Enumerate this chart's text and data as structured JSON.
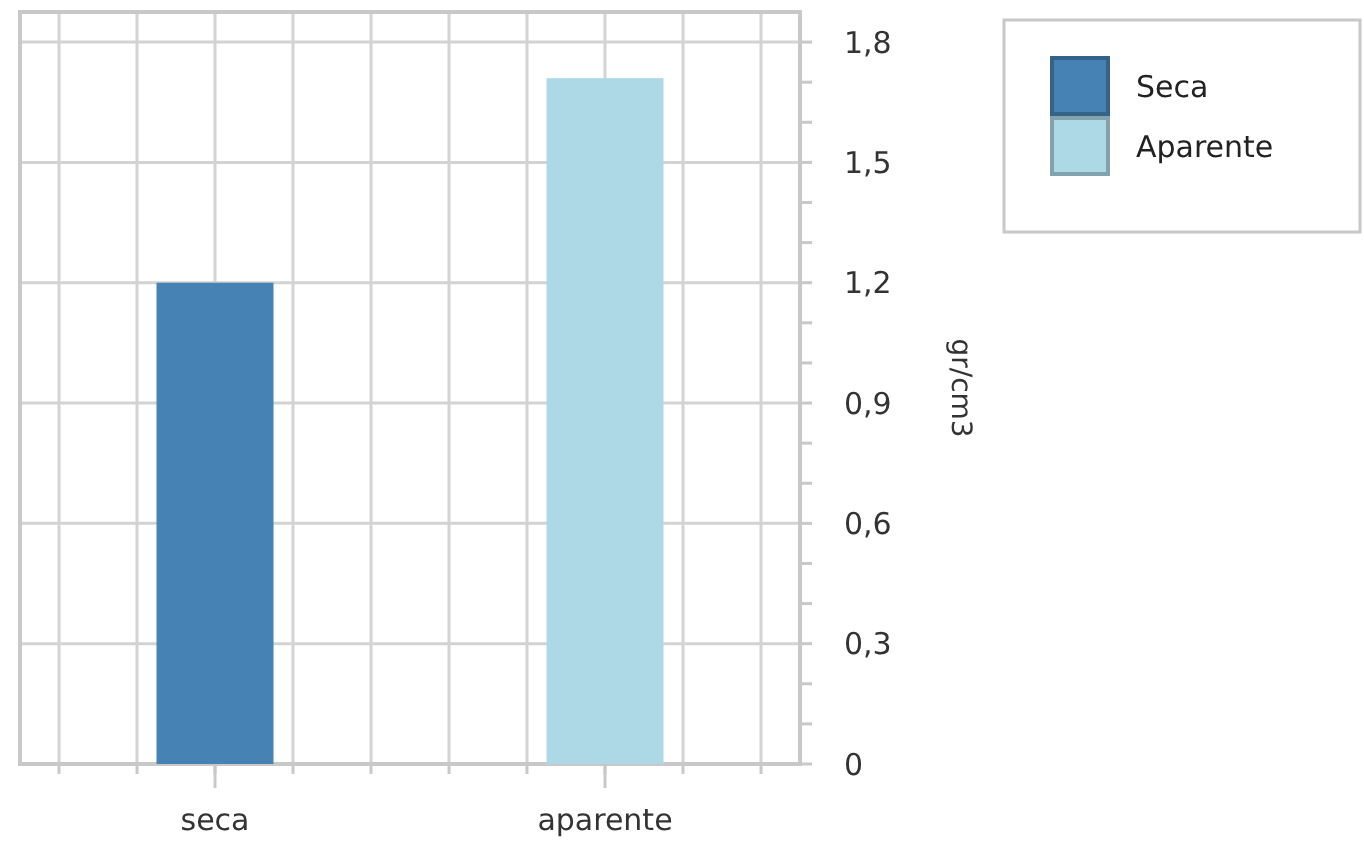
{
  "chart_data": {
    "type": "bar",
    "categories": [
      "seca",
      "aparente"
    ],
    "series": [
      {
        "name": "Seca",
        "color": "#4682b4",
        "values": [
          1.2,
          null
        ]
      },
      {
        "name": "Aparente",
        "color": "#add8e6",
        "values": [
          null,
          1.71
        ]
      }
    ],
    "ylabel": "gr/cm3",
    "ylim": [
      0,
      1.875
    ],
    "yticks": [
      {
        "value": 0,
        "label": "0"
      },
      {
        "value": 0.1,
        "label": null
      },
      {
        "value": 0.2,
        "label": null
      },
      {
        "value": 0.3,
        "label": "0,3"
      },
      {
        "value": 0.4,
        "label": null
      },
      {
        "value": 0.5,
        "label": null
      },
      {
        "value": 0.6,
        "label": "0,6"
      },
      {
        "value": 0.7,
        "label": null
      },
      {
        "value": 0.8,
        "label": null
      },
      {
        "value": 0.9,
        "label": "0,9"
      },
      {
        "value": 1.0,
        "label": null
      },
      {
        "value": 1.1,
        "label": null
      },
      {
        "value": 1.2,
        "label": "1,2"
      },
      {
        "value": 1.3,
        "label": null
      },
      {
        "value": 1.4,
        "label": null
      },
      {
        "value": 1.5,
        "label": "1,5"
      },
      {
        "value": 1.6,
        "label": null
      },
      {
        "value": 1.7,
        "label": null
      },
      {
        "value": 1.8,
        "label": "1,8"
      }
    ],
    "grid": true,
    "legend": "top right"
  }
}
